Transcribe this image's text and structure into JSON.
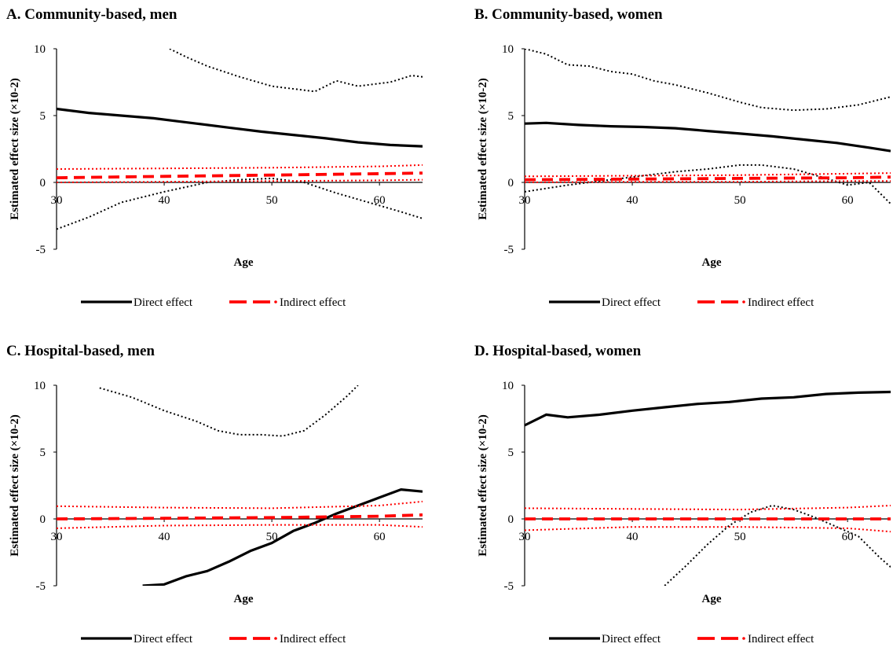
{
  "chart_data": [
    {
      "id": "A",
      "type": "line",
      "title": "A. Community-based, men",
      "xlabel": "Age",
      "ylabel": "Estimated effect size (×10-2)",
      "xlim": [
        30,
        64
      ],
      "ylim": [
        -5,
        10
      ],
      "xticks": [
        "30",
        "40",
        "50",
        "60"
      ],
      "yticks": [
        "-5",
        "0",
        "5",
        "10"
      ],
      "legend": {
        "placement": "bottom",
        "entries": [
          "Direct effect",
          "Indirect effect"
        ]
      },
      "series": [
        {
          "name": "Direct effect",
          "role": "estimate",
          "color": "#000000",
          "style": "solid",
          "x": [
            30,
            33,
            36,
            39,
            41,
            43,
            46,
            49,
            52,
            55,
            58,
            61,
            64
          ],
          "y": [
            5.5,
            5.2,
            5.0,
            4.8,
            4.6,
            4.4,
            4.1,
            3.8,
            3.55,
            3.3,
            3.0,
            2.8,
            2.7
          ]
        },
        {
          "name": "",
          "role": "ci-upper",
          "color": "#000000",
          "style": "dotted",
          "x": [
            40.5,
            42,
            44,
            47,
            50,
            54,
            56,
            58,
            61,
            63,
            64
          ],
          "y": [
            10,
            9.4,
            8.7,
            7.9,
            7.2,
            6.8,
            7.6,
            7.2,
            7.5,
            8.0,
            7.9
          ]
        },
        {
          "name": "",
          "role": "ci-lower",
          "color": "#000000",
          "style": "dotted",
          "x": [
            30,
            33,
            36,
            40,
            44,
            47,
            50,
            53,
            56,
            59,
            62,
            64
          ],
          "y": [
            -3.5,
            -2.6,
            -1.5,
            -0.7,
            0.0,
            0.2,
            0.3,
            0.0,
            -0.8,
            -1.5,
            -2.2,
            -2.7
          ]
        },
        {
          "name": "Indirect effect",
          "role": "estimate",
          "color": "#ff0000",
          "style": "dashed",
          "x": [
            30,
            40,
            50,
            60,
            64
          ],
          "y": [
            0.35,
            0.45,
            0.55,
            0.65,
            0.7
          ]
        },
        {
          "name": "",
          "role": "ci-upper",
          "color": "#ff0000",
          "style": "dotted",
          "x": [
            30,
            40,
            50,
            60,
            64
          ],
          "y": [
            1.0,
            1.05,
            1.1,
            1.2,
            1.3
          ]
        },
        {
          "name": "",
          "role": "ci-lower",
          "color": "#ff0000",
          "style": "dotted",
          "x": [
            30,
            40,
            50,
            60,
            64
          ],
          "y": [
            0.0,
            0.05,
            0.1,
            0.15,
            0.2
          ]
        }
      ]
    },
    {
      "id": "B",
      "type": "line",
      "title": "B. Community-based, women",
      "xlabel": "Age",
      "ylabel": "Estimated effect size (×10-2)",
      "xlim": [
        30,
        64
      ],
      "ylim": [
        -5,
        10
      ],
      "xticks": [
        "30",
        "40",
        "50",
        "60"
      ],
      "yticks": [
        "-5",
        "0",
        "5",
        "10"
      ],
      "legend": {
        "placement": "bottom",
        "entries": [
          "Direct effect",
          "Indirect effect"
        ]
      },
      "series": [
        {
          "name": "Direct effect",
          "role": "estimate",
          "color": "#000000",
          "style": "solid",
          "x": [
            30,
            32,
            35,
            38,
            41,
            44,
            47,
            50,
            53,
            56,
            59,
            62,
            64
          ],
          "y": [
            4.4,
            4.45,
            4.3,
            4.2,
            4.15,
            4.05,
            3.85,
            3.65,
            3.45,
            3.2,
            2.95,
            2.6,
            2.35
          ]
        },
        {
          "name": "",
          "role": "ci-upper",
          "color": "#000000",
          "style": "dotted",
          "x": [
            30,
            32,
            34,
            36,
            38,
            40,
            42,
            44,
            47,
            50,
            52,
            55,
            58,
            61,
            64
          ],
          "y": [
            10,
            9.6,
            8.8,
            8.7,
            8.3,
            8.1,
            7.6,
            7.3,
            6.7,
            6.0,
            5.6,
            5.4,
            5.5,
            5.8,
            6.4
          ]
        },
        {
          "name": "",
          "role": "ci-lower",
          "color": "#000000",
          "style": "dotted",
          "x": [
            30,
            34,
            38,
            41,
            44,
            47,
            50,
            52,
            55,
            58,
            60,
            62,
            64
          ],
          "y": [
            -0.7,
            -0.2,
            0.2,
            0.5,
            0.8,
            1.0,
            1.3,
            1.3,
            1.0,
            0.3,
            -0.2,
            0.0,
            -1.6
          ]
        },
        {
          "name": "Indirect effect",
          "role": "estimate",
          "color": "#ff0000",
          "style": "dashed",
          "x": [
            30,
            40,
            50,
            60,
            64
          ],
          "y": [
            0.2,
            0.25,
            0.3,
            0.35,
            0.4
          ]
        },
        {
          "name": "",
          "role": "ci-upper",
          "color": "#ff0000",
          "style": "dotted",
          "x": [
            30,
            40,
            50,
            60,
            64
          ],
          "y": [
            0.45,
            0.5,
            0.55,
            0.65,
            0.7
          ]
        },
        {
          "name": "",
          "role": "ci-lower",
          "color": "#ff0000",
          "style": "dotted",
          "x": [
            30,
            40,
            50,
            60,
            64
          ],
          "y": [
            0.0,
            0.05,
            0.05,
            0.1,
            0.1
          ]
        }
      ]
    },
    {
      "id": "C",
      "type": "line",
      "title": "C. Hospital-based, men",
      "xlabel": "Age",
      "ylabel": "Estimated effect size (×10-2)",
      "xlim": [
        30,
        64
      ],
      "ylim": [
        -5,
        10
      ],
      "xticks": [
        "30",
        "40",
        "50",
        "60"
      ],
      "yticks": [
        "-5",
        "0",
        "5",
        "10"
      ],
      "legend": {
        "placement": "bottom",
        "entries": [
          "Direct effect",
          "Indirect effect"
        ]
      },
      "series": [
        {
          "name": "Direct effect",
          "role": "estimate",
          "color": "#000000",
          "style": "solid",
          "x": [
            38,
            40,
            42,
            44,
            46,
            48,
            50,
            52,
            54,
            56,
            58,
            60,
            62,
            64
          ],
          "y": [
            -5,
            -4.9,
            -4.3,
            -3.9,
            -3.2,
            -2.4,
            -1.8,
            -0.9,
            -0.3,
            0.4,
            1.0,
            1.6,
            2.2,
            2.05
          ]
        },
        {
          "name": "",
          "role": "ci-upper",
          "color": "#000000",
          "style": "dotted",
          "x": [
            34,
            37,
            40,
            43,
            45,
            47,
            49,
            51,
            53,
            55,
            57,
            58
          ],
          "y": [
            9.8,
            9.1,
            8.1,
            7.3,
            6.6,
            6.3,
            6.3,
            6.2,
            6.6,
            7.8,
            9.2,
            10
          ]
        },
        {
          "name": "Indirect effect",
          "role": "estimate",
          "color": "#ff0000",
          "style": "dashed",
          "x": [
            30,
            40,
            50,
            60,
            64
          ],
          "y": [
            0.0,
            0.05,
            0.1,
            0.2,
            0.3
          ]
        },
        {
          "name": "",
          "role": "ci-upper",
          "color": "#ff0000",
          "style": "dotted",
          "x": [
            30,
            40,
            50,
            60,
            64
          ],
          "y": [
            0.95,
            0.85,
            0.8,
            1.0,
            1.3
          ]
        },
        {
          "name": "",
          "role": "ci-lower",
          "color": "#ff0000",
          "style": "dotted",
          "x": [
            30,
            40,
            50,
            60,
            64
          ],
          "y": [
            -0.7,
            -0.5,
            -0.45,
            -0.45,
            -0.6
          ]
        }
      ]
    },
    {
      "id": "D",
      "type": "line",
      "title": "D. Hospital-based, women",
      "xlabel": "Age",
      "ylabel": "Estimated effect size (×10-2)",
      "xlim": [
        30,
        64
      ],
      "ylim": [
        -5,
        10
      ],
      "xticks": [
        "30",
        "40",
        "50",
        "60"
      ],
      "yticks": [
        "-5",
        "0",
        "5",
        "10"
      ],
      "legend": {
        "placement": "bottom",
        "entries": [
          "Direct effect",
          "Indirect effect"
        ]
      },
      "series": [
        {
          "name": "Direct effect",
          "role": "estimate",
          "color": "#000000",
          "style": "solid",
          "x": [
            30,
            32,
            34,
            37,
            40,
            43,
            46,
            49,
            52,
            55,
            58,
            61,
            64
          ],
          "y": [
            7.0,
            7.8,
            7.6,
            7.8,
            8.1,
            8.35,
            8.6,
            8.75,
            9.0,
            9.1,
            9.35,
            9.45,
            9.5
          ]
        },
        {
          "name": "",
          "role": "ci-lower",
          "color": "#000000",
          "style": "dotted",
          "x": [
            43,
            45,
            47,
            49,
            51,
            53,
            55,
            57,
            59,
            61,
            63,
            64
          ],
          "y": [
            -5,
            -3.5,
            -1.9,
            -0.5,
            0.5,
            1.0,
            0.7,
            0.1,
            -0.6,
            -1.3,
            -2.9,
            -3.6
          ]
        },
        {
          "name": "Indirect effect",
          "role": "estimate",
          "color": "#ff0000",
          "style": "dashed",
          "x": [
            30,
            40,
            50,
            60,
            64
          ],
          "y": [
            0.0,
            0.0,
            0.0,
            0.0,
            0.0
          ]
        },
        {
          "name": "",
          "role": "ci-upper",
          "color": "#ff0000",
          "style": "dotted",
          "x": [
            30,
            40,
            50,
            60,
            64
          ],
          "y": [
            0.8,
            0.75,
            0.7,
            0.85,
            1.0
          ]
        },
        {
          "name": "",
          "role": "ci-lower",
          "color": "#ff0000",
          "style": "dotted",
          "x": [
            30,
            40,
            50,
            60,
            64
          ],
          "y": [
            -0.85,
            -0.6,
            -0.6,
            -0.7,
            -0.95
          ]
        }
      ]
    }
  ]
}
